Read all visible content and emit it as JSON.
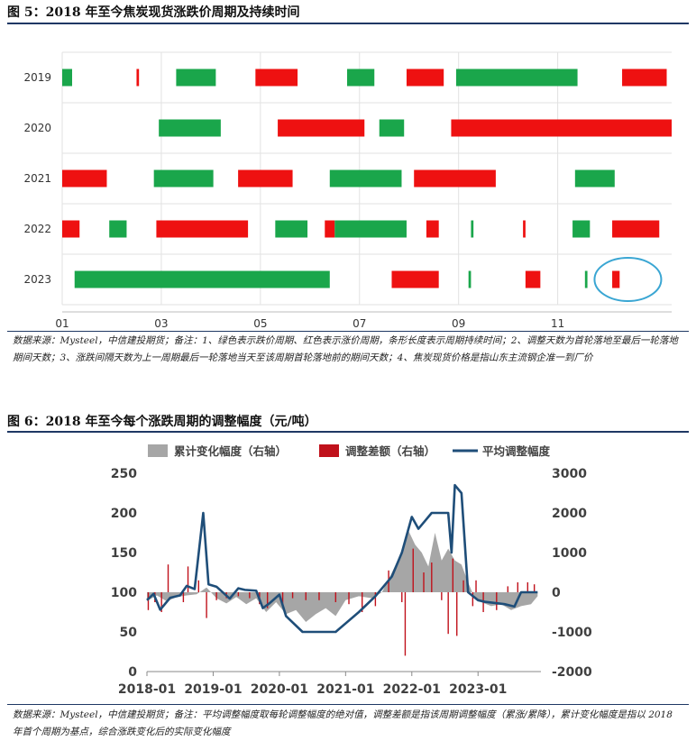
{
  "figure5": {
    "title": "图 5：2018 年至今焦炭现货涨跌价周期及持续时间",
    "note": "数据来源：Mysteel，中信建投期货；备注：1、绿色表示跌价周期、红色表示涨价周期，条形长度表示周期持续时间；2、调整天数为首轮落地至最后一轮落地期间天数；3、涨跌间隔天数为上一周期最后一轮落地当天至该周期首轮落地前的期间天数；4、焦炭现货价格是指山东主流钢企准一到厂价",
    "colors": {
      "down": "#1aa64b",
      "up": "#ee1111",
      "highlight": "#3aa6d3"
    },
    "chart_data": {
      "type": "gantt",
      "x_range_month": [
        1,
        13.3
      ],
      "x_ticks": [
        "01",
        "03",
        "05",
        "07",
        "09",
        "11"
      ],
      "rows": [
        {
          "label": "2019",
          "bars": [
            {
              "s": 1.0,
              "e": 1.2,
              "c": "down"
            },
            {
              "s": 2.5,
              "e": 2.55,
              "c": "up"
            },
            {
              "s": 3.3,
              "e": 4.1,
              "c": "down"
            },
            {
              "s": 4.9,
              "e": 5.75,
              "c": "up"
            },
            {
              "s": 6.75,
              "e": 7.3,
              "c": "down"
            },
            {
              "s": 7.95,
              "e": 8.7,
              "c": "up"
            },
            {
              "s": 8.95,
              "e": 11.4,
              "c": "down"
            },
            {
              "s": 12.3,
              "e": 13.2,
              "c": "up"
            }
          ]
        },
        {
          "label": "2020",
          "bars": [
            {
              "s": 2.95,
              "e": 4.2,
              "c": "down"
            },
            {
              "s": 5.35,
              "e": 7.1,
              "c": "up"
            },
            {
              "s": 7.4,
              "e": 7.9,
              "c": "down"
            },
            {
              "s": 8.85,
              "e": 13.3,
              "c": "up"
            }
          ]
        },
        {
          "label": "2021",
          "bars": [
            {
              "s": 1.0,
              "e": 1.9,
              "c": "up"
            },
            {
              "s": 2.85,
              "e": 4.05,
              "c": "down"
            },
            {
              "s": 4.55,
              "e": 5.65,
              "c": "up"
            },
            {
              "s": 6.4,
              "e": 7.85,
              "c": "down"
            },
            {
              "s": 8.1,
              "e": 9.75,
              "c": "up"
            },
            {
              "s": 11.35,
              "e": 12.15,
              "c": "down"
            }
          ]
        },
        {
          "label": "2022",
          "bars": [
            {
              "s": 1.0,
              "e": 1.35,
              "c": "up"
            },
            {
              "s": 1.95,
              "e": 2.3,
              "c": "down"
            },
            {
              "s": 2.9,
              "e": 4.75,
              "c": "up"
            },
            {
              "s": 5.3,
              "e": 5.95,
              "c": "down"
            },
            {
              "s": 6.3,
              "e": 6.5,
              "c": "up"
            },
            {
              "s": 6.5,
              "e": 7.95,
              "c": "down"
            },
            {
              "s": 8.35,
              "e": 8.6,
              "c": "up"
            },
            {
              "s": 9.25,
              "e": 9.3,
              "c": "down"
            },
            {
              "s": 10.3,
              "e": 10.35,
              "c": "up"
            },
            {
              "s": 11.3,
              "e": 11.65,
              "c": "down"
            },
            {
              "s": 12.1,
              "e": 13.05,
              "c": "up"
            }
          ]
        },
        {
          "label": "2023",
          "bars": [
            {
              "s": 1.25,
              "e": 6.4,
              "c": "down"
            },
            {
              "s": 7.65,
              "e": 8.6,
              "c": "up"
            },
            {
              "s": 9.2,
              "e": 9.25,
              "c": "down"
            },
            {
              "s": 10.35,
              "e": 10.65,
              "c": "up"
            },
            {
              "s": 11.55,
              "e": 11.6,
              "c": "down"
            },
            {
              "s": 12.1,
              "e": 12.25,
              "c": "up"
            }
          ]
        }
      ],
      "highlight": {
        "row": "2023",
        "center": 12.18
      }
    }
  },
  "figure6": {
    "title": "图 6：2018 年至今每个涨跌周期的调整幅度（元/吨）",
    "note": "数据来源：Mysteel，中信建投期货；备注：平均调整幅度取每轮调整幅度的绝对值，调整差额是指该周期调整幅度（累涨/累降），累计变化幅度是指以 2018 年首个周期为基点，综合涨跌变化后的实际变化幅度",
    "colors": {
      "area": "#a6a6a6",
      "bar": "#c0111b",
      "line": "#1f4e79"
    },
    "chart_data": {
      "type": "combo",
      "legend": [
        "累计变化幅度（右轴）",
        "调整差额（右轴）",
        "平均调整幅度"
      ],
      "x_ticks": [
        "2018-01",
        "2019-01",
        "2020-01",
        "2021-01",
        "2022-01",
        "2023-01"
      ],
      "x_range": [
        2018.0,
        2023.95
      ],
      "y_left": {
        "range": [
          0,
          250
        ],
        "ticks": [
          "0",
          "50",
          "100",
          "150",
          "200",
          "250"
        ]
      },
      "y_right": {
        "range": [
          -2000,
          3000
        ],
        "ticks": [
          "-2000",
          "-1000",
          "0",
          "1000",
          "2000",
          "3000"
        ]
      },
      "series_line": [
        [
          2018.0,
          90
        ],
        [
          2018.1,
          98
        ],
        [
          2018.2,
          78
        ],
        [
          2018.35,
          93
        ],
        [
          2018.5,
          96
        ],
        [
          2018.6,
          108
        ],
        [
          2018.72,
          104
        ],
        [
          2018.85,
          200
        ],
        [
          2018.93,
          110
        ],
        [
          2019.05,
          107
        ],
        [
          2019.25,
          92
        ],
        [
          2019.38,
          105
        ],
        [
          2019.48,
          103
        ],
        [
          2019.65,
          102
        ],
        [
          2019.75,
          80
        ],
        [
          2019.85,
          86
        ],
        [
          2020.0,
          97
        ],
        [
          2020.1,
          70
        ],
        [
          2020.35,
          50
        ],
        [
          2020.6,
          50
        ],
        [
          2020.85,
          50
        ],
        [
          2021.2,
          75
        ],
        [
          2021.45,
          95
        ],
        [
          2021.7,
          120
        ],
        [
          2021.85,
          150
        ],
        [
          2022.0,
          195
        ],
        [
          2022.1,
          180
        ],
        [
          2022.2,
          190
        ],
        [
          2022.3,
          200
        ],
        [
          2022.45,
          200
        ],
        [
          2022.55,
          200
        ],
        [
          2022.6,
          150
        ],
        [
          2022.65,
          235
        ],
        [
          2022.75,
          225
        ],
        [
          2022.85,
          100
        ],
        [
          2023.0,
          90
        ],
        [
          2023.1,
          88
        ],
        [
          2023.4,
          85
        ],
        [
          2023.55,
          82
        ],
        [
          2023.65,
          100
        ],
        [
          2023.8,
          100
        ],
        [
          2023.9,
          100
        ]
      ],
      "series_area": [
        [
          2018.0,
          -220
        ],
        [
          2018.15,
          -80
        ],
        [
          2018.3,
          -230
        ],
        [
          2018.45,
          -120
        ],
        [
          2018.6,
          -80
        ],
        [
          2018.75,
          -50
        ],
        [
          2018.9,
          120
        ],
        [
          2019.05,
          -150
        ],
        [
          2019.2,
          -280
        ],
        [
          2019.35,
          -120
        ],
        [
          2019.5,
          -300
        ],
        [
          2019.65,
          -150
        ],
        [
          2019.8,
          -500
        ],
        [
          2019.95,
          -250
        ],
        [
          2020.1,
          -550
        ],
        [
          2020.25,
          -450
        ],
        [
          2020.4,
          -750
        ],
        [
          2020.55,
          -550
        ],
        [
          2020.7,
          -400
        ],
        [
          2020.85,
          -600
        ],
        [
          2021.0,
          -200
        ],
        [
          2021.2,
          -100
        ],
        [
          2021.4,
          -150
        ],
        [
          2021.55,
          0
        ],
        [
          2021.7,
          500
        ],
        [
          2021.8,
          850
        ],
        [
          2021.95,
          1550
        ],
        [
          2022.05,
          1200
        ],
        [
          2022.15,
          1000
        ],
        [
          2022.25,
          650
        ],
        [
          2022.35,
          1500
        ],
        [
          2022.45,
          800
        ],
        [
          2022.55,
          1100
        ],
        [
          2022.65,
          800
        ],
        [
          2022.75,
          700
        ],
        [
          2022.85,
          250
        ],
        [
          2022.95,
          -150
        ],
        [
          2023.05,
          -250
        ],
        [
          2023.2,
          -350
        ],
        [
          2023.35,
          -300
        ],
        [
          2023.5,
          -450
        ],
        [
          2023.65,
          -350
        ],
        [
          2023.8,
          -300
        ],
        [
          2023.9,
          -100
        ]
      ],
      "series_bars": [
        [
          2018.02,
          -450
        ],
        [
          2018.12,
          -250
        ],
        [
          2018.22,
          -500
        ],
        [
          2018.32,
          700
        ],
        [
          2018.55,
          -250
        ],
        [
          2018.62,
          650
        ],
        [
          2018.78,
          300
        ],
        [
          2018.9,
          -650
        ],
        [
          2019.05,
          -200
        ],
        [
          2019.2,
          -150
        ],
        [
          2019.38,
          -100
        ],
        [
          2019.55,
          -150
        ],
        [
          2019.7,
          -300
        ],
        [
          2019.82,
          -400
        ],
        [
          2020.05,
          -350
        ],
        [
          2020.2,
          -150
        ],
        [
          2020.4,
          -200
        ],
        [
          2020.6,
          -200
        ],
        [
          2020.85,
          -250
        ],
        [
          2021.05,
          -300
        ],
        [
          2021.25,
          -500
        ],
        [
          2021.45,
          -350
        ],
        [
          2021.65,
          550
        ],
        [
          2021.85,
          -250
        ],
        [
          2021.9,
          -1600
        ],
        [
          2022.02,
          1100
        ],
        [
          2022.18,
          500
        ],
        [
          2022.3,
          750
        ],
        [
          2022.45,
          -200
        ],
        [
          2022.55,
          -1050
        ],
        [
          2022.62,
          850
        ],
        [
          2022.68,
          -1100
        ],
        [
          2022.78,
          300
        ],
        [
          2022.92,
          -350
        ],
        [
          2022.97,
          300
        ],
        [
          2023.08,
          -500
        ],
        [
          2023.28,
          -450
        ],
        [
          2023.45,
          150
        ],
        [
          2023.6,
          250
        ],
        [
          2023.75,
          250
        ],
        [
          2023.85,
          200
        ]
      ]
    }
  }
}
